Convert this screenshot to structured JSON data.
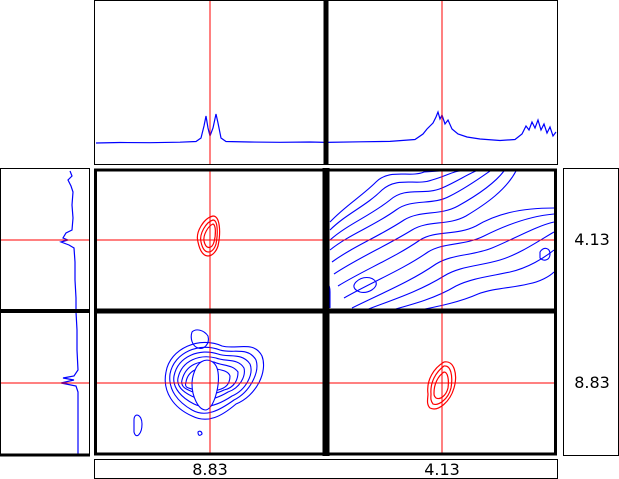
{
  "labels": {
    "right_top": "4.13",
    "right_bottom": "8.83",
    "bottom_left": "8.83",
    "bottom_right": "4.13"
  },
  "colors": {
    "trace": "#0000ff",
    "contour_positive": "#0000ff",
    "contour_cross": "#ff0000",
    "crosshair": "#ff0000",
    "frame": "#000000",
    "background": "#ffffff"
  },
  "crosshair_ppm": [
    "8.83",
    "4.13"
  ]
}
